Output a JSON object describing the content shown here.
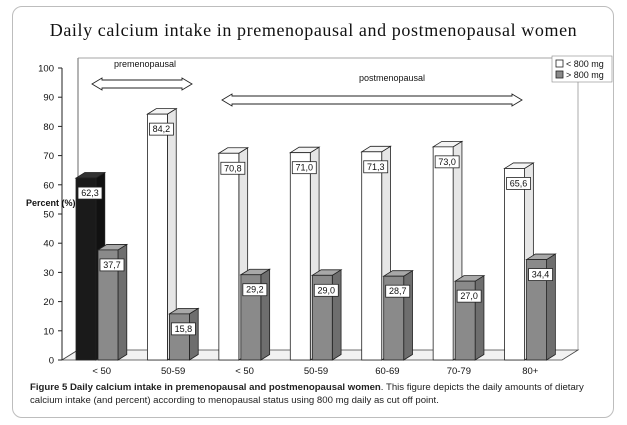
{
  "chart_data": {
    "type": "bar",
    "title": "Daily calcium intake in premenopausal and postmenopausal women",
    "ylabel": "Percent (%)",
    "ylim": [
      0,
      100
    ],
    "yticks": [
      "0",
      "10",
      "20",
      "30",
      "40",
      "50",
      "60",
      "70",
      "80",
      "90",
      "100"
    ],
    "categories": [
      "< 50",
      "50-59",
      "< 50",
      "50-59",
      "60-69",
      "70-79",
      "80+"
    ],
    "series": [
      {
        "name": "< 800 mg",
        "values": [
          62.3,
          84.2,
          70.8,
          71.0,
          71.3,
          73.0,
          65.6
        ],
        "labels": [
          "62,3",
          "84,2",
          "70,8",
          "71,0",
          "71,3",
          "73,0",
          "65,6"
        ]
      },
      {
        "name": "> 800 mg",
        "values": [
          37.7,
          15.8,
          29.2,
          29.0,
          28.7,
          27.0,
          34.4
        ],
        "labels": [
          "37,7",
          "15,8",
          "29,2",
          "29,0",
          "28,7",
          "27,0",
          "34,4"
        ]
      }
    ],
    "group_annotations": [
      "premenopausal",
      "postmenopausal"
    ],
    "legend_position": "top-right",
    "grid": false,
    "colors": {
      "low_first": "#1a1a1a",
      "low": "#ffffff",
      "high": "#8a8a8a"
    }
  },
  "caption": {
    "label": "Figure 5 Daily calcium intake in premenopausal and postmenopausal women",
    "text": ". This figure depicts the daily amounts of dietary calcium intake (and percent) according to menopausal status using 800 mg daily as cut off point."
  }
}
